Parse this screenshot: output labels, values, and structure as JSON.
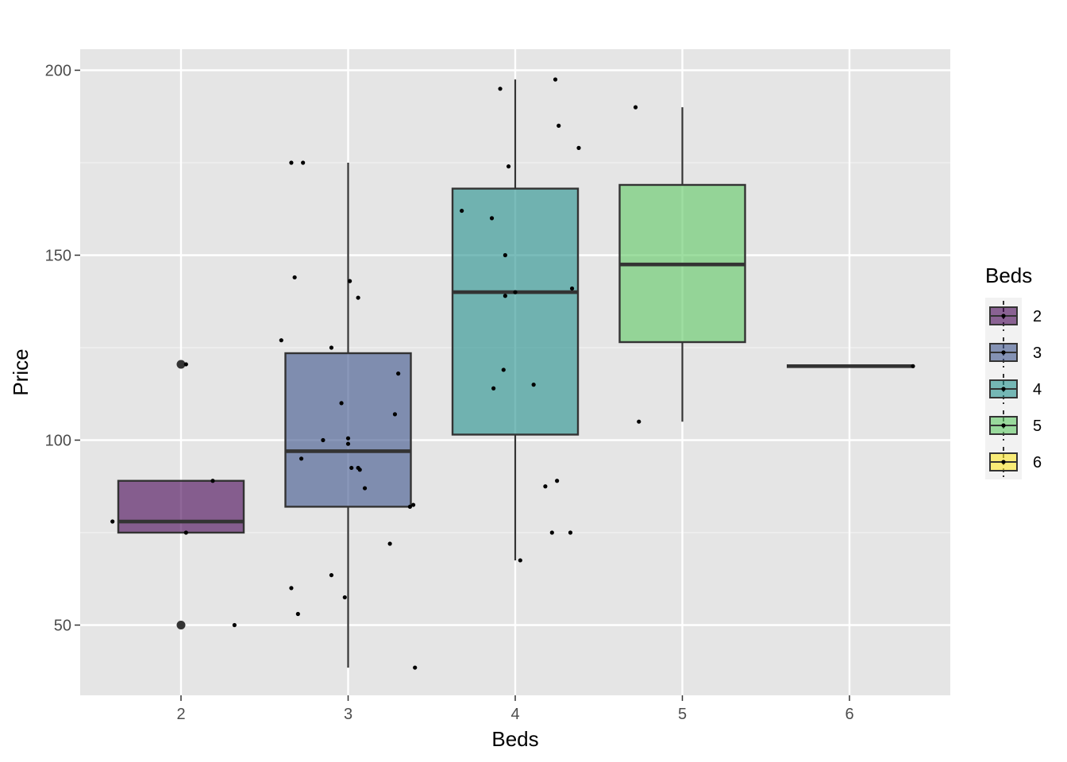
{
  "chart_data": {
    "type": "boxplot",
    "title": "",
    "xlabel": "Beds",
    "ylabel": "Price",
    "x_ticks": [
      "2",
      "3",
      "4",
      "5",
      "6"
    ],
    "y_ticks": [
      "50",
      "100",
      "150",
      "200"
    ],
    "ylim": [
      30,
      205
    ],
    "grid": true,
    "legend": {
      "title": "Beds",
      "position": "right",
      "entries": [
        "2",
        "3",
        "4",
        "5",
        "6"
      ]
    },
    "colors": {
      "2": "#440154",
      "3": "#3B528B",
      "4": "#21908C",
      "5": "#5DC863",
      "6": "#FDE725"
    },
    "box_opacity": 0.6,
    "boxes": [
      {
        "beds": 2,
        "min": 75,
        "q1": 75,
        "median": 78,
        "q3": 89,
        "max": 89,
        "outliers": [
          120.5,
          50
        ]
      },
      {
        "beds": 3,
        "min": 38.5,
        "q1": 82,
        "median": 97,
        "q3": 123.5,
        "max": 175,
        "outliers": []
      },
      {
        "beds": 4,
        "min": 67.5,
        "q1": 101.5,
        "median": 140,
        "q3": 168,
        "max": 197.5,
        "outliers": []
      },
      {
        "beds": 5,
        "min": 105,
        "q1": 126.5,
        "median": 147.5,
        "q3": 169,
        "max": 190,
        "outliers": []
      },
      {
        "beds": 6,
        "min": 120,
        "q1": 120,
        "median": 120,
        "q3": 120,
        "max": 120,
        "outliers": []
      }
    ],
    "points": [
      [
        1.59,
        78
      ],
      [
        2.03,
        120.5
      ],
      [
        2.03,
        75
      ],
      [
        2.19,
        89
      ],
      [
        2.32,
        50
      ],
      [
        2.6,
        127
      ],
      [
        2.66,
        175
      ],
      [
        2.66,
        60
      ],
      [
        2.68,
        144
      ],
      [
        2.7,
        53
      ],
      [
        2.72,
        95
      ],
      [
        2.73,
        175
      ],
      [
        2.85,
        100
      ],
      [
        2.9,
        125
      ],
      [
        2.9,
        63.5
      ],
      [
        2.96,
        110
      ],
      [
        2.98,
        57.5
      ],
      [
        3.0,
        100.5
      ],
      [
        3.0,
        99
      ],
      [
        3.01,
        143
      ],
      [
        3.02,
        92.5
      ],
      [
        3.06,
        138.5
      ],
      [
        3.06,
        92.5
      ],
      [
        3.07,
        92
      ],
      [
        3.1,
        87
      ],
      [
        3.25,
        72
      ],
      [
        3.28,
        107
      ],
      [
        3.3,
        118
      ],
      [
        3.37,
        82
      ],
      [
        3.39,
        82.5
      ],
      [
        3.4,
        38.5
      ],
      [
        3.68,
        162
      ],
      [
        3.86,
        160
      ],
      [
        3.87,
        114
      ],
      [
        3.91,
        195
      ],
      [
        3.93,
        119
      ],
      [
        3.94,
        139
      ],
      [
        3.94,
        150
      ],
      [
        3.96,
        174
      ],
      [
        4.0,
        140
      ],
      [
        4.03,
        67.5
      ],
      [
        4.11,
        115
      ],
      [
        4.18,
        87.5
      ],
      [
        4.22,
        75
      ],
      [
        4.24,
        197.5
      ],
      [
        4.25,
        89
      ],
      [
        4.26,
        185
      ],
      [
        4.33,
        75
      ],
      [
        4.34,
        141
      ],
      [
        4.38,
        179
      ],
      [
        4.72,
        190
      ],
      [
        4.74,
        105
      ],
      [
        6.38,
        120
      ]
    ]
  }
}
